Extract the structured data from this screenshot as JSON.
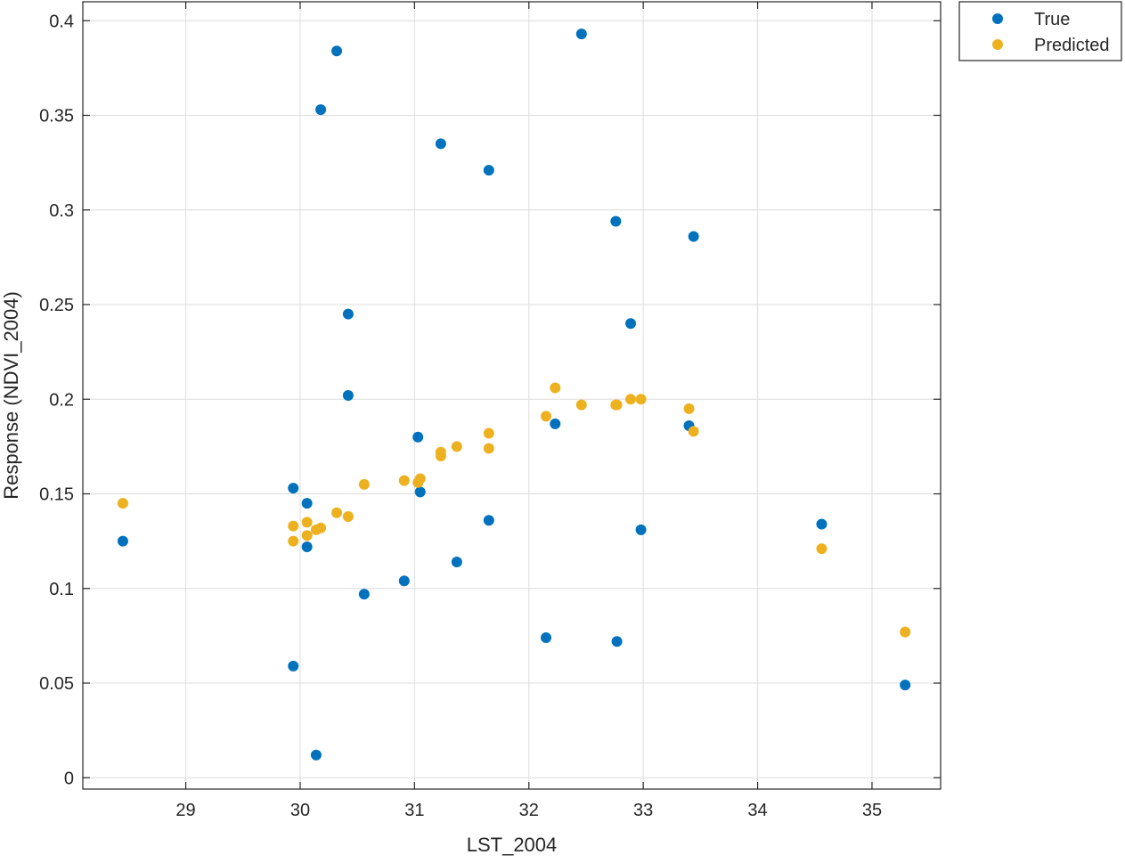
{
  "chart_data": {
    "type": "scatter",
    "title": "",
    "xlabel": "LST_2004",
    "ylabel": "Response (NDVI_2004)",
    "xlim": [
      28.1,
      35.6
    ],
    "ylim": [
      -0.006,
      0.41
    ],
    "xticks": [
      29,
      30,
      31,
      32,
      33,
      34,
      35
    ],
    "yticks": [
      0,
      0.05,
      0.1,
      0.15,
      0.2,
      0.25,
      0.3,
      0.35,
      0.4
    ],
    "xtick_labels": [
      "29",
      "30",
      "31",
      "32",
      "33",
      "34",
      "35"
    ],
    "ytick_labels": [
      "0",
      "0.05",
      "0.1",
      "0.15",
      "0.2",
      "0.25",
      "0.3",
      "0.35",
      "0.4"
    ],
    "grid": true,
    "legend": {
      "position": "top-right-outside"
    },
    "series": [
      {
        "name": "True",
        "color": "#0072BD",
        "points": [
          [
            28.45,
            0.125
          ],
          [
            29.94,
            0.059
          ],
          [
            29.94,
            0.153
          ],
          [
            30.06,
            0.122
          ],
          [
            30.06,
            0.145
          ],
          [
            30.14,
            0.012
          ],
          [
            30.18,
            0.353
          ],
          [
            30.32,
            0.384
          ],
          [
            30.42,
            0.245
          ],
          [
            30.42,
            0.202
          ],
          [
            30.56,
            0.097
          ],
          [
            30.91,
            0.104
          ],
          [
            31.03,
            0.18
          ],
          [
            31.05,
            0.151
          ],
          [
            31.23,
            0.335
          ],
          [
            31.37,
            0.114
          ],
          [
            31.65,
            0.321
          ],
          [
            31.65,
            0.136
          ],
          [
            32.15,
            0.074
          ],
          [
            32.23,
            0.187
          ],
          [
            32.46,
            0.393
          ],
          [
            32.76,
            0.294
          ],
          [
            32.77,
            0.072
          ],
          [
            32.89,
            0.24
          ],
          [
            32.98,
            0.131
          ],
          [
            33.4,
            0.186
          ],
          [
            33.44,
            0.286
          ],
          [
            34.56,
            0.134
          ],
          [
            35.29,
            0.049
          ]
        ]
      },
      {
        "name": "Predicted",
        "color": "#EDB120",
        "points": [
          [
            28.45,
            0.145
          ],
          [
            29.94,
            0.125
          ],
          [
            29.94,
            0.133
          ],
          [
            30.06,
            0.128
          ],
          [
            30.06,
            0.135
          ],
          [
            30.14,
            0.131
          ],
          [
            30.18,
            0.132
          ],
          [
            30.32,
            0.14
          ],
          [
            30.42,
            0.138
          ],
          [
            30.56,
            0.155
          ],
          [
            30.91,
            0.157
          ],
          [
            31.03,
            0.156
          ],
          [
            31.05,
            0.158
          ],
          [
            31.23,
            0.17
          ],
          [
            31.23,
            0.172
          ],
          [
            31.37,
            0.175
          ],
          [
            31.65,
            0.174
          ],
          [
            31.65,
            0.182
          ],
          [
            32.15,
            0.191
          ],
          [
            32.23,
            0.206
          ],
          [
            32.46,
            0.197
          ],
          [
            32.76,
            0.197
          ],
          [
            32.77,
            0.197
          ],
          [
            32.89,
            0.2
          ],
          [
            32.98,
            0.2
          ],
          [
            33.4,
            0.195
          ],
          [
            33.44,
            0.183
          ],
          [
            34.56,
            0.121
          ],
          [
            35.29,
            0.077
          ]
        ]
      }
    ]
  }
}
